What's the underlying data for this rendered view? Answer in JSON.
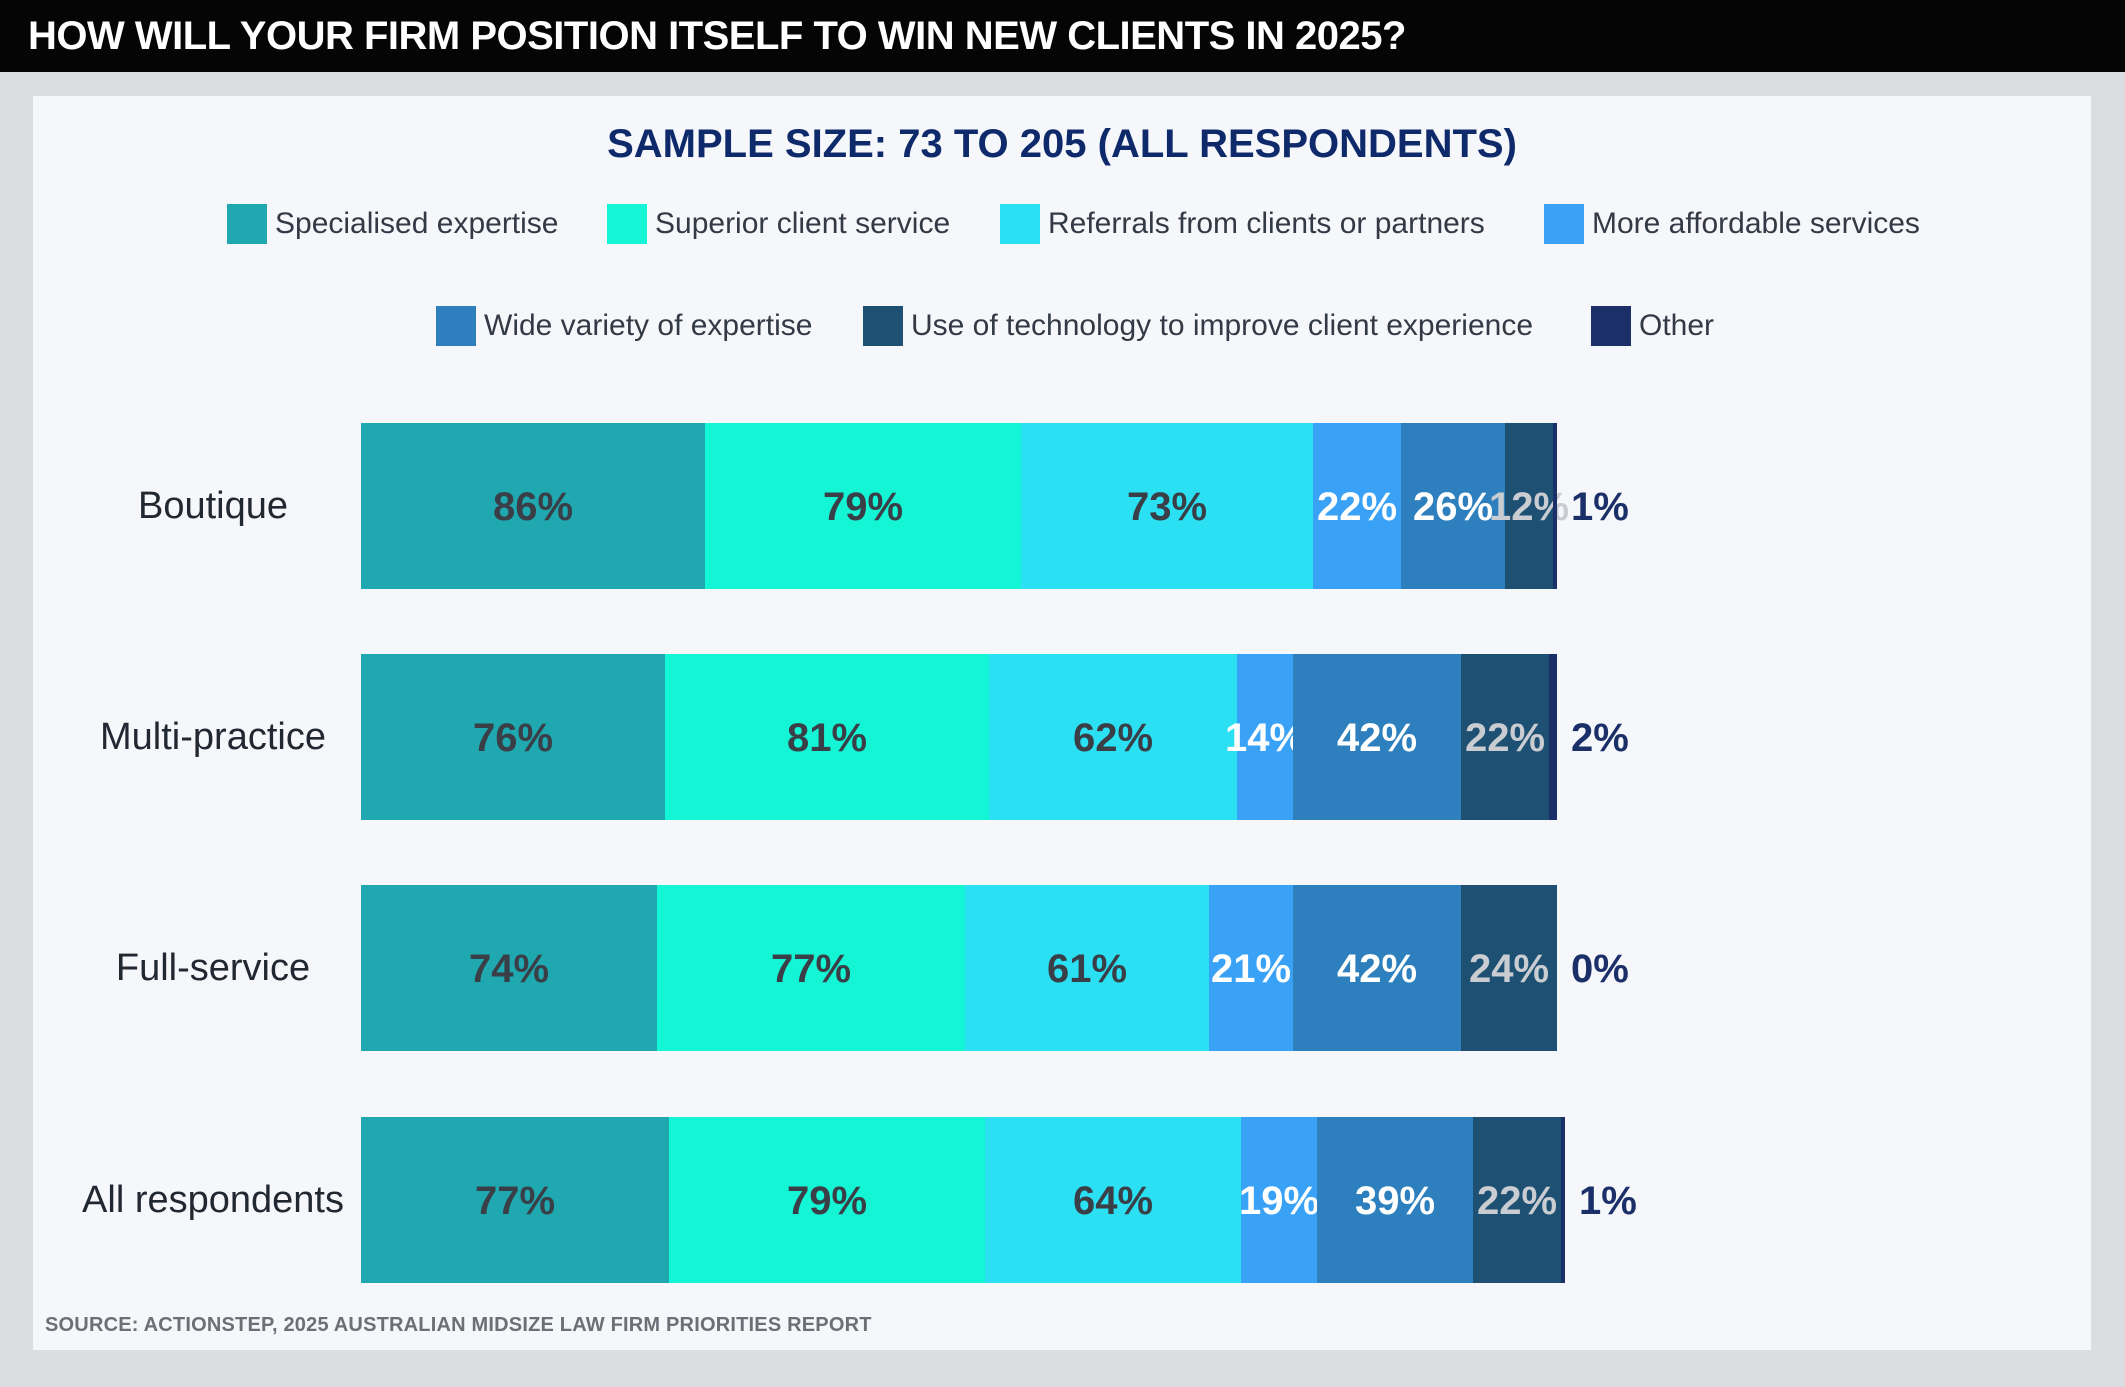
{
  "header": {
    "title": "HOW WILL YOUR FIRM POSITION ITSELF TO WIN NEW CLIENTS IN 2025?"
  },
  "subtitle": "SAMPLE SIZE: 73 TO 205 (ALL RESPONDENTS)",
  "source": "SOURCE: ACTIONSTEP, 2025 AUSTRALIAN MIDSIZE LAW FIRM PRIORITIES REPORT",
  "legend": [
    {
      "label": "Specialised expertise",
      "color": "#1fa8b0"
    },
    {
      "label": "Superior client service",
      "color": "#14f5d6"
    },
    {
      "label": "Referrals from clients or partners",
      "color": "#2ae0f2"
    },
    {
      "label": "More affordable services",
      "color": "#3aa2f6"
    },
    {
      "label": "Wide variety of expertise",
      "color": "#2d80bd"
    },
    {
      "label": "Use of technology to improve client experience",
      "color": "#1d5072"
    },
    {
      "label": "Other",
      "color": "#1b2f68"
    }
  ],
  "chart_data": {
    "type": "bar",
    "orientation": "horizontal",
    "stacked": true,
    "categories": [
      "Boutique",
      "Multi-practice",
      "Full-service",
      "All respondents"
    ],
    "series": [
      {
        "name": "Specialised expertise",
        "color": "#1fa8b0",
        "label_color": "#3a3f47",
        "values": [
          86,
          76,
          74,
          77
        ]
      },
      {
        "name": "Superior client service",
        "color": "#14f5d6",
        "label_color": "#3a3f47",
        "values": [
          79,
          81,
          77,
          79
        ]
      },
      {
        "name": "Referrals from clients or partners",
        "color": "#2ae0f2",
        "label_color": "#3a3f47",
        "values": [
          73,
          62,
          61,
          64
        ]
      },
      {
        "name": "More affordable services",
        "color": "#3aa2f6",
        "label_color": "#ffffff",
        "values": [
          22,
          14,
          21,
          19
        ]
      },
      {
        "name": "Wide variety of expertise",
        "color": "#2d80bd",
        "label_color": "#ffffff",
        "values": [
          26,
          42,
          42,
          39
        ]
      },
      {
        "name": "Use of technology to improve client experience",
        "color": "#1d5072",
        "label_color": "#c9ccd1",
        "values": [
          12,
          22,
          24,
          22
        ]
      },
      {
        "name": "Other",
        "color": "#1b2f68",
        "label_color": "#1b2f68",
        "values": [
          1,
          2,
          0,
          1
        ]
      }
    ],
    "value_suffix": "%",
    "legend_position": "top",
    "grid": false
  }
}
